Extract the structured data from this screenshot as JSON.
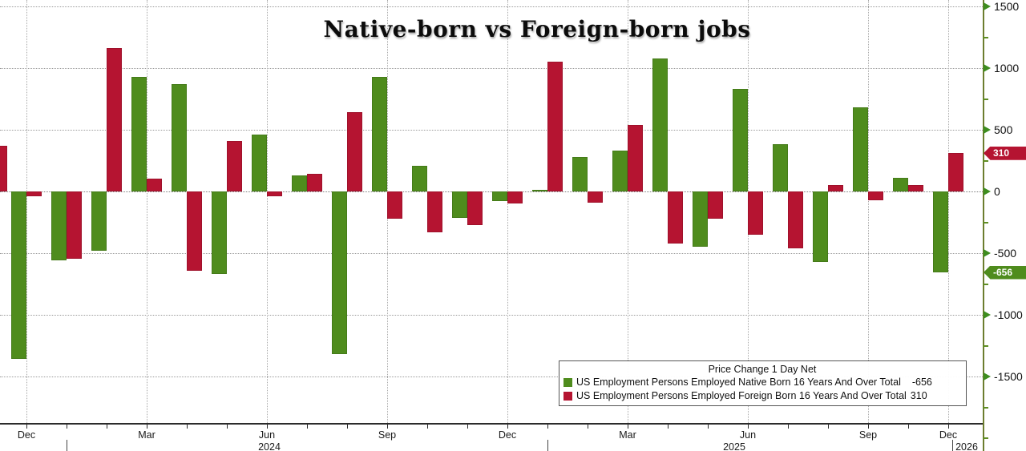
{
  "chart_data": {
    "type": "bar",
    "title": "Native-born vs Foreign-born jobs",
    "categories": [
      "Nov 2023",
      "Dec 2023",
      "Jan 2024",
      "Feb 2024",
      "Mar 2024",
      "Apr 2024",
      "May 2024",
      "Jun 2024",
      "Jul 2024",
      "Aug 2024",
      "Sep 2024",
      "Oct 2024",
      "Nov 2024",
      "Dec 2024",
      "Jan 2025",
      "Feb 2025",
      "Mar 2025",
      "Apr 2025",
      "May 2025",
      "Jun 2025",
      "Jul 2025",
      "Aug 2025",
      "Sep 2025",
      "Oct 2025",
      "Nov 2025"
    ],
    "series": [
      {
        "name": "US Employment Persons Employed Native Born 16 Years And Over Total",
        "color": "#4f8c1d",
        "values": [
          null,
          -1360,
          -560,
          -480,
          930,
          870,
          -670,
          460,
          130,
          -1320,
          930,
          210,
          -215,
          -80,
          10,
          280,
          330,
          1080,
          -450,
          830,
          380,
          -570,
          680,
          110,
          -656
        ]
      },
      {
        "name": "US Employment Persons Employed Foreign Born 16 Years And Over Total",
        "color": "#b51431",
        "values": [
          370,
          -40,
          -545,
          1160,
          105,
          -640,
          410,
          -40,
          140,
          640,
          -220,
          -330,
          -270,
          -100,
          1050,
          -90,
          540,
          -420,
          -220,
          -350,
          -460,
          50,
          -70,
          50,
          310
        ]
      }
    ],
    "ylim": [
      -1500,
      1500
    ],
    "grid": true,
    "legend_position": "bottom-right",
    "y_axis": {
      "tick_labels": [
        "1500",
        "1000",
        "500",
        "0",
        "-500",
        "-1000",
        "-1500"
      ],
      "tick_values": [
        1500,
        1000,
        500,
        0,
        -500,
        -1000,
        -1500
      ],
      "minor_tick_values": [
        1250,
        750,
        250,
        -250,
        -750,
        -1250,
        -1750,
        -2000
      ],
      "side": "right"
    },
    "x_axis": {
      "tick_labels": [
        "Dec",
        "Mar",
        "Jun",
        "Sep",
        "Dec",
        "Mar",
        "Jun",
        "Sep",
        "Dec"
      ],
      "year_labels": [
        "2024",
        "2025",
        "2026"
      ]
    }
  },
  "axis_tags": [
    {
      "text": "310",
      "value": 310,
      "color": "#b51431"
    },
    {
      "text": "-656",
      "value": -656,
      "color": "#4f8c1d"
    }
  ],
  "legend": {
    "title": "Price Change 1 Day Net",
    "items": [
      {
        "swatch_color": "#4f8c1d",
        "label": "US Employment Persons Employed Native Born 16 Years And Over Total",
        "value": "-656"
      },
      {
        "swatch_color": "#b51431",
        "label": "US Employment Persons Employed Foreign Born 16 Years And Over Total",
        "value": "310"
      }
    ]
  }
}
